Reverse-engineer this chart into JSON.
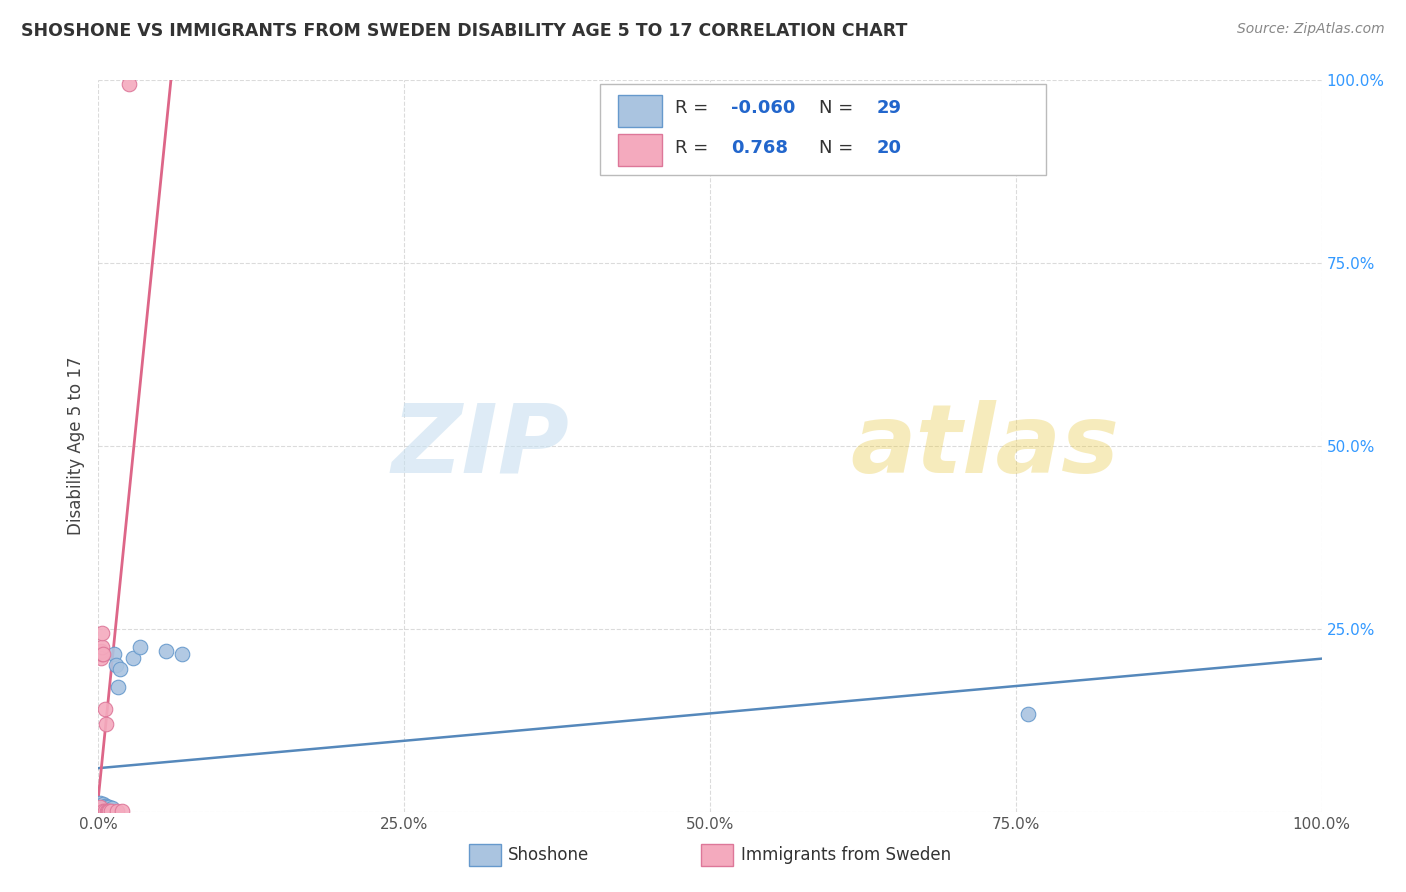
{
  "title": "SHOSHONE VS IMMIGRANTS FROM SWEDEN DISABILITY AGE 5 TO 17 CORRELATION CHART",
  "source": "Source: ZipAtlas.com",
  "ylabel": "Disability Age 5 to 17",
  "xlim": [
    0,
    1.0
  ],
  "ylim": [
    0,
    1.0
  ],
  "xtick_vals": [
    0.0,
    0.25,
    0.5,
    0.75,
    1.0
  ],
  "xtick_labels": [
    "0.0%",
    "25.0%",
    "50.0%",
    "75.0%",
    "100.0%"
  ],
  "ytick_vals": [
    0.0,
    0.25,
    0.5,
    0.75,
    1.0
  ],
  "ytick_labels": [
    "",
    "25.0%",
    "50.0%",
    "75.0%",
    "100.0%"
  ],
  "watermark_zip": "ZIP",
  "watermark_atlas": "atlas",
  "legend_R_sh": "-0.060",
  "legend_N_sh": "29",
  "legend_R_sw": "0.768",
  "legend_N_sw": "20",
  "shoshone_color": "#aac4e0",
  "shoshone_edge": "#6699cc",
  "sweden_color": "#f4aabe",
  "sweden_edge": "#dd7799",
  "trend_sh_color": "#5588bb",
  "trend_sw_color": "#dd6688",
  "grid_color": "#cccccc",
  "title_color": "#333333",
  "source_color": "#888888",
  "bg_color": "#ffffff",
  "shoshone_x": [
    0.001,
    0.001,
    0.001,
    0.001,
    0.002,
    0.003,
    0.003,
    0.003,
    0.004,
    0.004,
    0.004,
    0.005,
    0.005,
    0.006,
    0.006,
    0.007,
    0.008,
    0.009,
    0.01,
    0.011,
    0.013,
    0.014,
    0.016,
    0.018,
    0.028,
    0.034,
    0.055,
    0.068,
    0.76
  ],
  "shoshone_y": [
    0.001,
    0.003,
    0.007,
    0.012,
    0.001,
    0.002,
    0.006,
    0.009,
    0.003,
    0.006,
    0.01,
    0.004,
    0.008,
    0.004,
    0.008,
    0.007,
    0.004,
    0.006,
    0.003,
    0.005,
    0.215,
    0.2,
    0.17,
    0.195,
    0.21,
    0.225,
    0.22,
    0.215,
    0.133
  ],
  "sweden_x": [
    0.001,
    0.001,
    0.001,
    0.002,
    0.002,
    0.003,
    0.003,
    0.003,
    0.004,
    0.004,
    0.005,
    0.005,
    0.006,
    0.007,
    0.008,
    0.009,
    0.01,
    0.015,
    0.019,
    0.025
  ],
  "sweden_y": [
    0.001,
    0.003,
    0.007,
    0.21,
    0.22,
    0.215,
    0.225,
    0.245,
    0.215,
    0.001,
    0.14,
    0.001,
    0.12,
    0.001,
    0.001,
    0.001,
    0.001,
    0.001,
    0.001,
    0.995
  ]
}
